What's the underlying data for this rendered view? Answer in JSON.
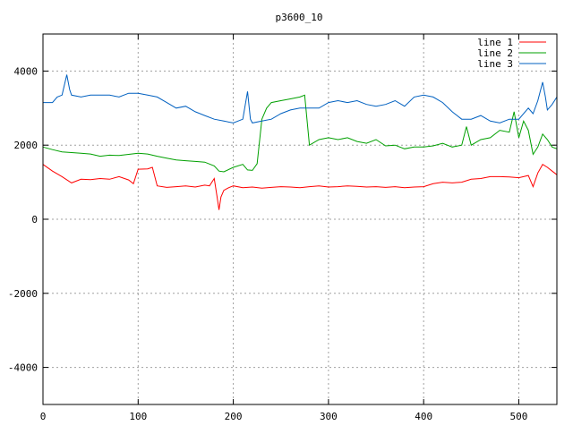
{
  "chart_data": {
    "type": "line",
    "title": "p3600_10",
    "xlabel": "",
    "ylabel": "",
    "xlim": [
      0,
      540
    ],
    "ylim": [
      -5000,
      5000
    ],
    "xticks": [
      0,
      100,
      200,
      300,
      400,
      500
    ],
    "yticks": [
      -4000,
      -2000,
      0,
      2000,
      4000
    ],
    "grid": true,
    "legend_position": "top-right",
    "series": [
      {
        "name": "line 1",
        "color": "#ff0000",
        "points": [
          [
            0,
            1480
          ],
          [
            10,
            1300
          ],
          [
            20,
            1150
          ],
          [
            30,
            980
          ],
          [
            40,
            1080
          ],
          [
            50,
            1070
          ],
          [
            60,
            1100
          ],
          [
            70,
            1080
          ],
          [
            80,
            1150
          ],
          [
            90,
            1060
          ],
          [
            95,
            960
          ],
          [
            100,
            1350
          ],
          [
            110,
            1360
          ],
          [
            115,
            1400
          ],
          [
            120,
            900
          ],
          [
            130,
            860
          ],
          [
            140,
            880
          ],
          [
            150,
            900
          ],
          [
            160,
            870
          ],
          [
            170,
            920
          ],
          [
            175,
            900
          ],
          [
            180,
            1100
          ],
          [
            183,
            600
          ],
          [
            185,
            250
          ],
          [
            187,
            600
          ],
          [
            190,
            780
          ],
          [
            195,
            850
          ],
          [
            200,
            900
          ],
          [
            210,
            850
          ],
          [
            220,
            870
          ],
          [
            230,
            840
          ],
          [
            240,
            860
          ],
          [
            250,
            880
          ],
          [
            260,
            870
          ],
          [
            270,
            850
          ],
          [
            280,
            880
          ],
          [
            290,
            900
          ],
          [
            300,
            870
          ],
          [
            310,
            880
          ],
          [
            320,
            900
          ],
          [
            330,
            890
          ],
          [
            340,
            870
          ],
          [
            350,
            880
          ],
          [
            360,
            860
          ],
          [
            370,
            880
          ],
          [
            380,
            850
          ],
          [
            390,
            870
          ],
          [
            400,
            880
          ],
          [
            410,
            960
          ],
          [
            420,
            1000
          ],
          [
            430,
            980
          ],
          [
            440,
            1000
          ],
          [
            450,
            1080
          ],
          [
            460,
            1100
          ],
          [
            470,
            1150
          ],
          [
            480,
            1150
          ],
          [
            490,
            1140
          ],
          [
            500,
            1120
          ],
          [
            510,
            1180
          ],
          [
            515,
            880
          ],
          [
            520,
            1250
          ],
          [
            525,
            1480
          ],
          [
            530,
            1400
          ],
          [
            535,
            1300
          ],
          [
            540,
            1200
          ]
        ]
      },
      {
        "name": "line 2",
        "color": "#00a000",
        "points": [
          [
            0,
            1950
          ],
          [
            10,
            1880
          ],
          [
            20,
            1820
          ],
          [
            30,
            1800
          ],
          [
            40,
            1780
          ],
          [
            50,
            1760
          ],
          [
            60,
            1700
          ],
          [
            70,
            1730
          ],
          [
            80,
            1720
          ],
          [
            90,
            1750
          ],
          [
            100,
            1780
          ],
          [
            110,
            1760
          ],
          [
            120,
            1700
          ],
          [
            130,
            1650
          ],
          [
            140,
            1600
          ],
          [
            150,
            1580
          ],
          [
            160,
            1560
          ],
          [
            170,
            1540
          ],
          [
            180,
            1440
          ],
          [
            185,
            1300
          ],
          [
            190,
            1280
          ],
          [
            200,
            1400
          ],
          [
            210,
            1480
          ],
          [
            215,
            1330
          ],
          [
            220,
            1320
          ],
          [
            225,
            1500
          ],
          [
            230,
            2700
          ],
          [
            235,
            3000
          ],
          [
            240,
            3150
          ],
          [
            250,
            3200
          ],
          [
            260,
            3250
          ],
          [
            270,
            3300
          ],
          [
            275,
            3350
          ],
          [
            280,
            2000
          ],
          [
            290,
            2150
          ],
          [
            300,
            2200
          ],
          [
            310,
            2150
          ],
          [
            320,
            2200
          ],
          [
            330,
            2100
          ],
          [
            340,
            2050
          ],
          [
            350,
            2150
          ],
          [
            360,
            1980
          ],
          [
            370,
            2000
          ],
          [
            380,
            1900
          ],
          [
            390,
            1950
          ],
          [
            400,
            1950
          ],
          [
            410,
            1980
          ],
          [
            420,
            2050
          ],
          [
            430,
            1950
          ],
          [
            440,
            2000
          ],
          [
            445,
            2500
          ],
          [
            450,
            2000
          ],
          [
            460,
            2150
          ],
          [
            470,
            2200
          ],
          [
            480,
            2400
          ],
          [
            490,
            2350
          ],
          [
            495,
            2900
          ],
          [
            500,
            2200
          ],
          [
            505,
            2650
          ],
          [
            510,
            2400
          ],
          [
            515,
            1750
          ],
          [
            520,
            1950
          ],
          [
            525,
            2300
          ],
          [
            530,
            2150
          ],
          [
            535,
            1950
          ],
          [
            540,
            1900
          ]
        ]
      },
      {
        "name": "line 3",
        "color": "#0060c0",
        "points": [
          [
            0,
            3150
          ],
          [
            10,
            3150
          ],
          [
            15,
            3300
          ],
          [
            20,
            3350
          ],
          [
            25,
            3900
          ],
          [
            28,
            3500
          ],
          [
            30,
            3350
          ],
          [
            40,
            3300
          ],
          [
            50,
            3350
          ],
          [
            60,
            3350
          ],
          [
            70,
            3350
          ],
          [
            80,
            3300
          ],
          [
            90,
            3400
          ],
          [
            100,
            3400
          ],
          [
            110,
            3350
          ],
          [
            120,
            3300
          ],
          [
            130,
            3150
          ],
          [
            140,
            3000
          ],
          [
            150,
            3050
          ],
          [
            160,
            2900
          ],
          [
            170,
            2800
          ],
          [
            180,
            2700
          ],
          [
            190,
            2650
          ],
          [
            200,
            2600
          ],
          [
            210,
            2700
          ],
          [
            215,
            3450
          ],
          [
            218,
            2700
          ],
          [
            220,
            2600
          ],
          [
            230,
            2650
          ],
          [
            240,
            2700
          ],
          [
            250,
            2850
          ],
          [
            260,
            2950
          ],
          [
            270,
            3000
          ],
          [
            280,
            3000
          ],
          [
            290,
            3000
          ],
          [
            300,
            3150
          ],
          [
            310,
            3200
          ],
          [
            320,
            3150
          ],
          [
            330,
            3200
          ],
          [
            340,
            3100
          ],
          [
            350,
            3050
          ],
          [
            360,
            3100
          ],
          [
            370,
            3200
          ],
          [
            380,
            3050
          ],
          [
            390,
            3300
          ],
          [
            400,
            3350
          ],
          [
            410,
            3300
          ],
          [
            420,
            3150
          ],
          [
            430,
            2900
          ],
          [
            440,
            2700
          ],
          [
            450,
            2700
          ],
          [
            460,
            2800
          ],
          [
            470,
            2650
          ],
          [
            480,
            2600
          ],
          [
            490,
            2700
          ],
          [
            500,
            2700
          ],
          [
            510,
            3000
          ],
          [
            515,
            2850
          ],
          [
            520,
            3200
          ],
          [
            525,
            3700
          ],
          [
            528,
            3300
          ],
          [
            530,
            2950
          ],
          [
            535,
            3100
          ],
          [
            540,
            3300
          ]
        ]
      }
    ]
  }
}
